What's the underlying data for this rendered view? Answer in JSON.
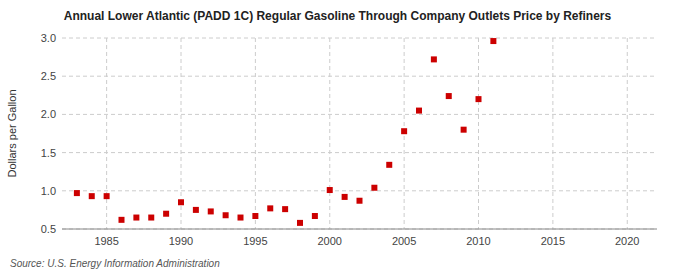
{
  "chart_data": {
    "type": "scatter",
    "title": "Annual Lower Atlantic (PADD 1C) Regular Gasoline Through Company Outlets Price by Refiners",
    "y_label": "Dollars per Gallon",
    "annotations": [
      "Source: U.S. Energy Information Administration"
    ],
    "x": [
      1983,
      1984,
      1985,
      1986,
      1987,
      1988,
      1989,
      1990,
      1991,
      1992,
      1993,
      1994,
      1995,
      1996,
      1997,
      1998,
      1999,
      2000,
      2001,
      2002,
      2003,
      2004,
      2005,
      2006,
      2007,
      2008,
      2009,
      2010,
      2011
    ],
    "values": [
      0.97,
      0.93,
      0.93,
      0.62,
      0.65,
      0.65,
      0.7,
      0.85,
      0.75,
      0.73,
      0.68,
      0.65,
      0.67,
      0.77,
      0.76,
      0.58,
      0.67,
      1.01,
      0.92,
      0.87,
      1.04,
      1.34,
      1.78,
      2.05,
      2.72,
      2.24,
      1.8,
      2.2,
      2.96
    ],
    "color": "#cc0000",
    "marker": "square",
    "xlim": [
      1982,
      2022
    ],
    "ylim": [
      0.5,
      3.0
    ],
    "xticks": [
      1985,
      1990,
      1995,
      2000,
      2005,
      2010,
      2015,
      2020
    ],
    "yticks": [
      0.5,
      {
        "value": 1.0,
        "label": "1.0"
      },
      1.5,
      {
        "value": 2.0,
        "label": "2.0"
      },
      2.5,
      {
        "value": 3.0,
        "label": "3.0"
      }
    ],
    "grid": true
  }
}
